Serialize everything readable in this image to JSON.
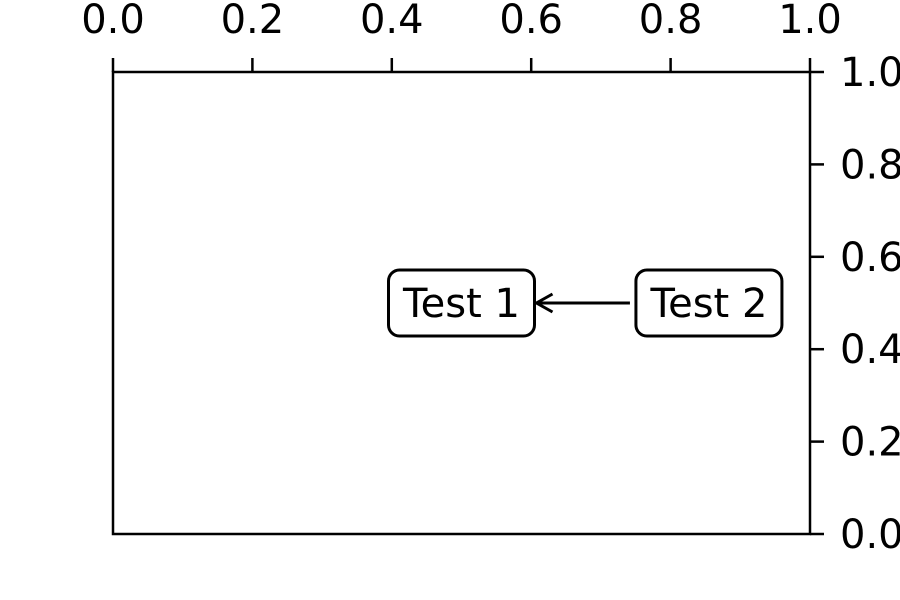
{
  "chart_data": {
    "type": "annotation",
    "title": "",
    "xlabel": "",
    "ylabel": "",
    "xlim": [
      0.0,
      1.0
    ],
    "ylim": [
      0.0,
      1.0
    ],
    "x_axis_position": "top",
    "y_axis_position": "right",
    "grid": false,
    "x_ticks": [
      "0.0",
      "0.2",
      "0.4",
      "0.6",
      "0.8",
      "1.0"
    ],
    "y_ticks": [
      "0.0",
      "0.2",
      "0.4",
      "0.6",
      "0.8",
      "1.0"
    ],
    "annotations": [
      {
        "text": "Test 1",
        "x": 0.5,
        "y": 0.5,
        "box": "round"
      },
      {
        "text": "Test 2",
        "x": 0.855,
        "y": 0.5,
        "box": "round",
        "arrow_to": "Test 1"
      }
    ]
  }
}
